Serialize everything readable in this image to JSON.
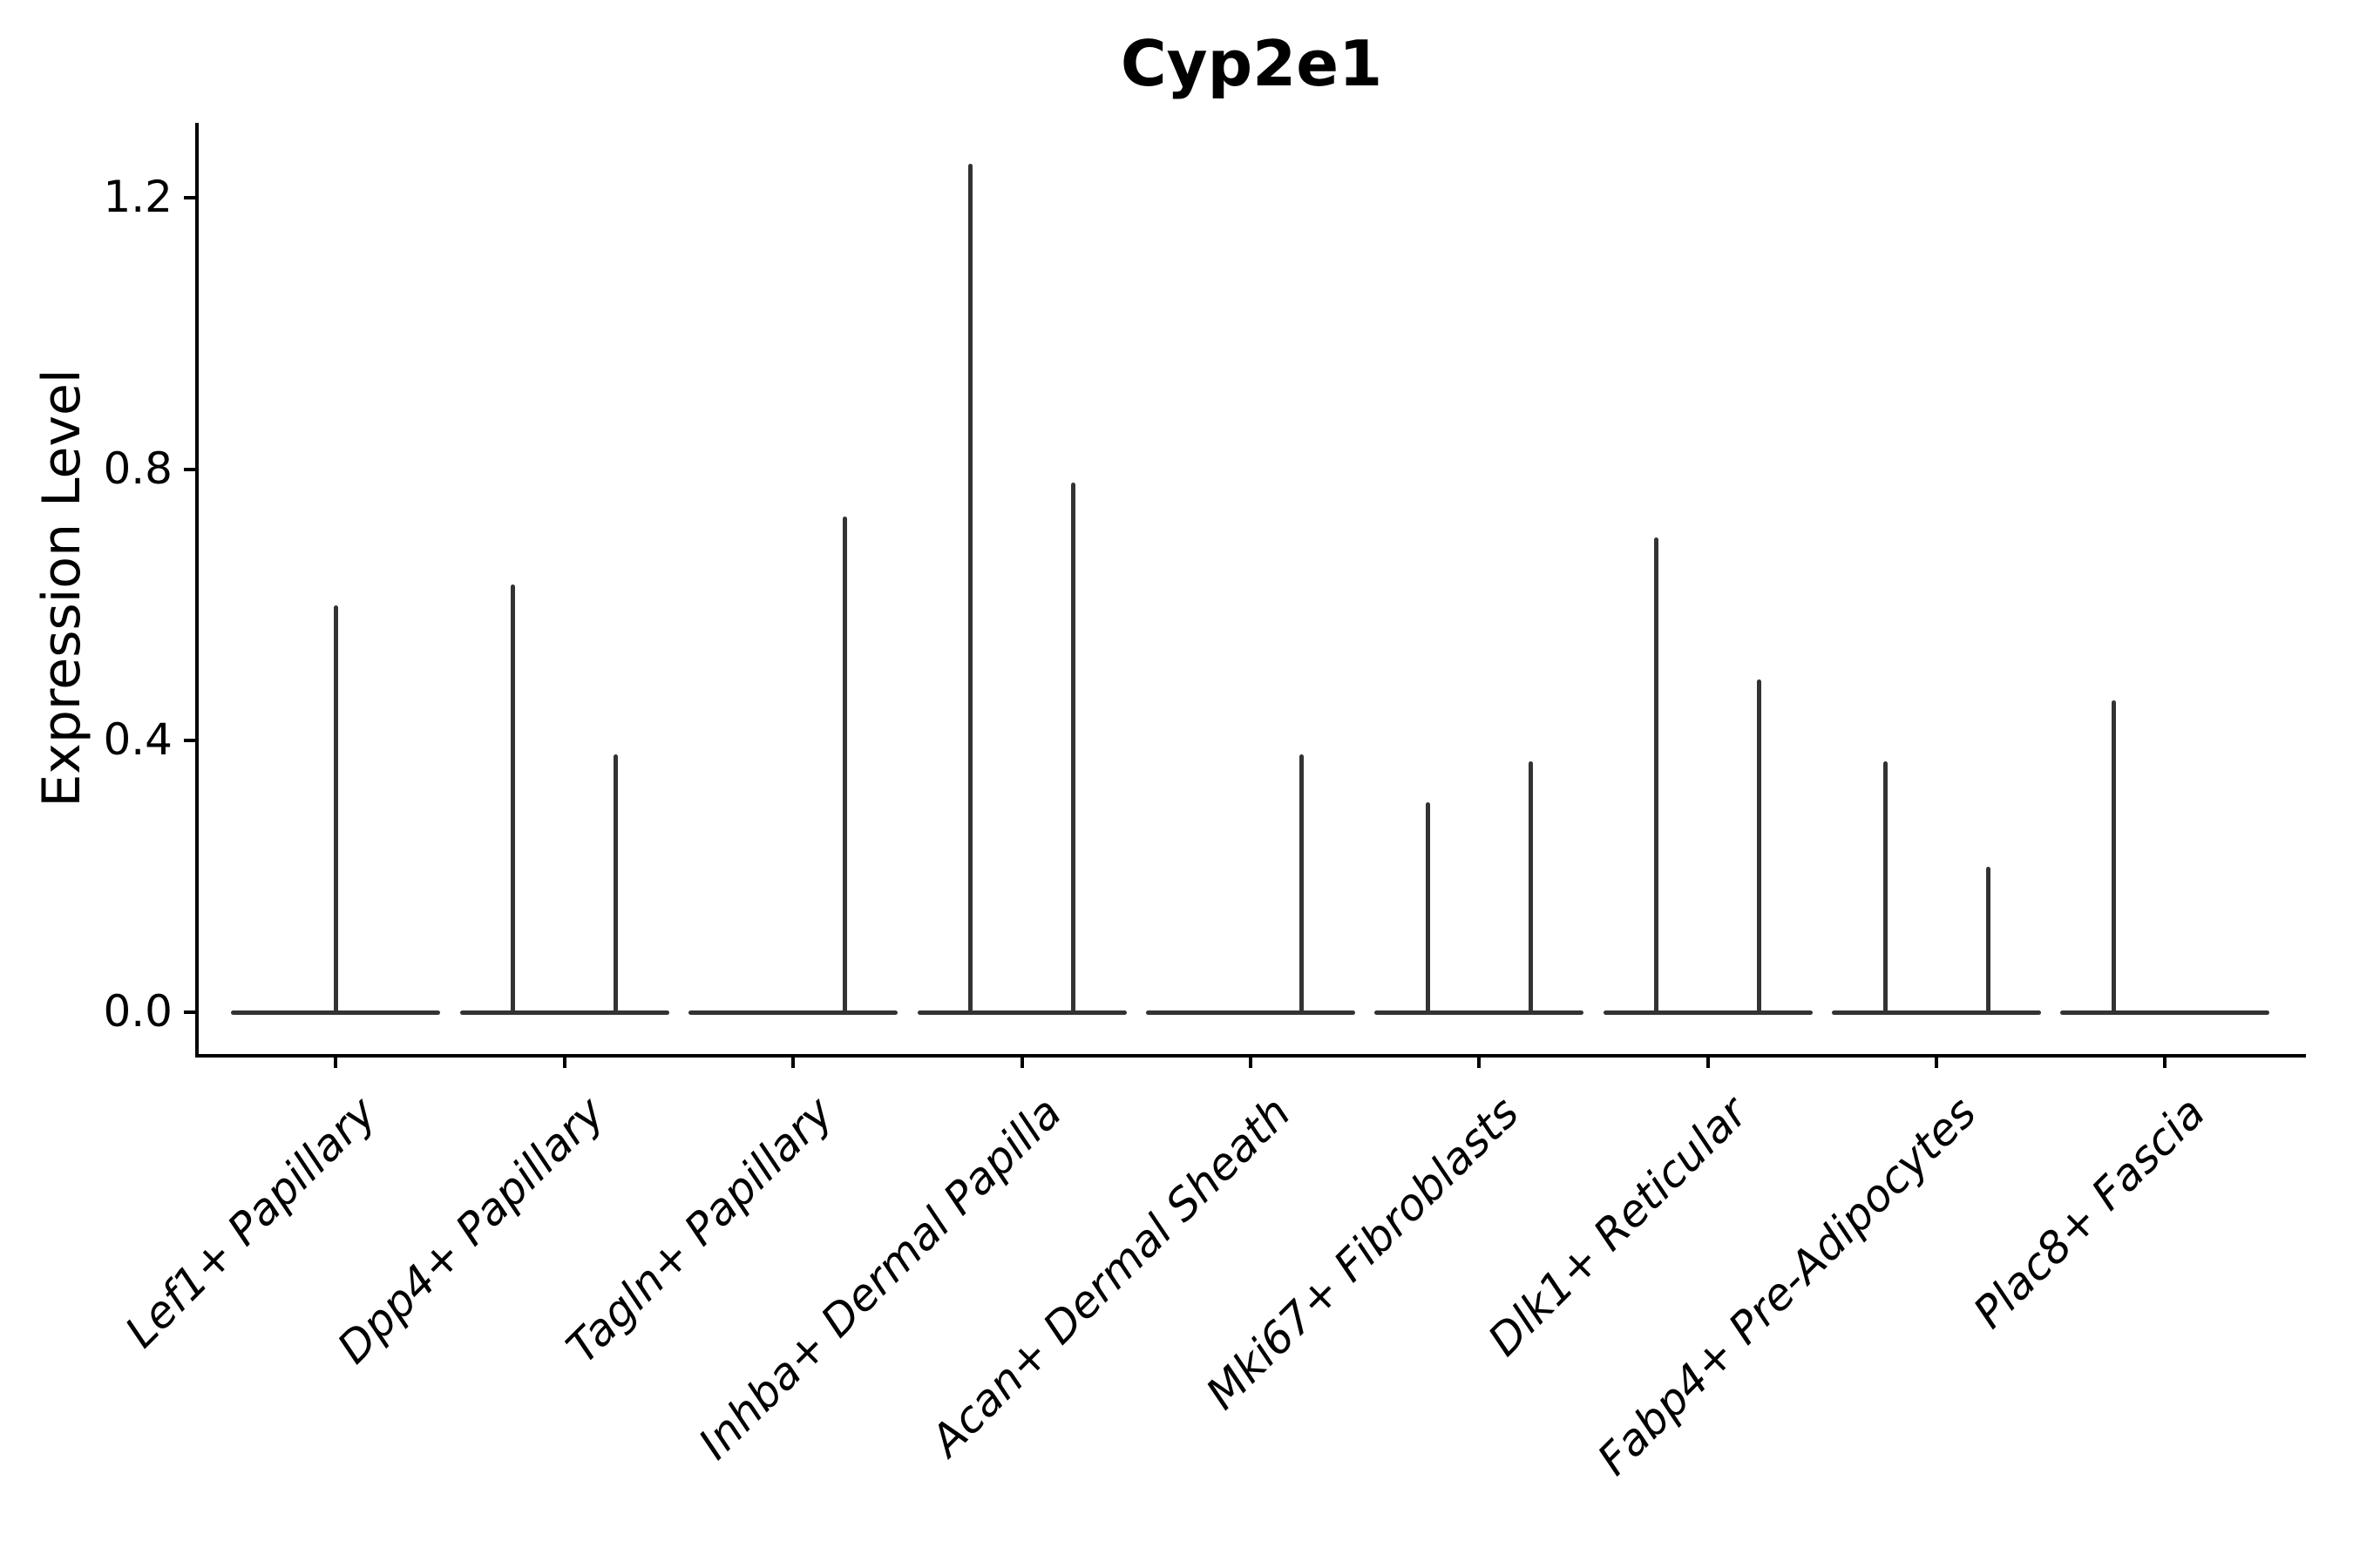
{
  "title": "Cyp2e1",
  "y_axis": {
    "label": "Expression Level",
    "tick_labels": [
      "0.0",
      "0.4",
      "0.8",
      "1.2"
    ]
  },
  "colors": {
    "violin_stroke": "#333333",
    "axis": "#000000",
    "text": "#000000",
    "background": "#ffffff"
  },
  "chart_data": {
    "type": "violin",
    "title": "Cyp2e1",
    "xlabel": "",
    "ylabel": "Expression Level",
    "ylim": [
      0,
      1.31
    ],
    "yticks": [
      0.0,
      0.4,
      0.8,
      1.2
    ],
    "grid": false,
    "legend": false,
    "x_tick_rotation": 45,
    "categories": [
      "Lef1+ Papillary",
      "Dpp4+ Papillary",
      "Tagln+ Papillary",
      "Inhba+ Dermal Papilla",
      "Acan+ Dermal Sheath",
      "Mki67+ Fibroblasts",
      "Dlk1+ Reticular",
      "Fabp4+ Pre-Adipocytes",
      "Plac8+ Fascia"
    ],
    "series": [
      {
        "category": "Lef1+ Papillary",
        "violins": [
          {
            "position": "center",
            "max_expression": 0.6
          }
        ]
      },
      {
        "category": "Dpp4+ Papillary",
        "violins": [
          {
            "position": "left",
            "max_expression": 0.63
          },
          {
            "position": "right",
            "max_expression": 0.38
          }
        ]
      },
      {
        "category": "Tagln+ Papillary",
        "violins": [
          {
            "position": "right",
            "max_expression": 0.73
          }
        ]
      },
      {
        "category": "Inhba+ Dermal Papilla",
        "violins": [
          {
            "position": "left",
            "max_expression": 1.25
          },
          {
            "position": "right",
            "max_expression": 0.78
          }
        ]
      },
      {
        "category": "Acan+ Dermal Sheath",
        "violins": [
          {
            "position": "right",
            "max_expression": 0.38
          }
        ]
      },
      {
        "category": "Mki67+ Fibroblasts",
        "violins": [
          {
            "position": "left",
            "max_expression": 0.31
          },
          {
            "position": "right",
            "max_expression": 0.37
          }
        ]
      },
      {
        "category": "Dlk1+ Reticular",
        "violins": [
          {
            "position": "left",
            "max_expression": 0.7
          },
          {
            "position": "right",
            "max_expression": 0.49
          }
        ]
      },
      {
        "category": "Fabp4+ Pre-Adipocytes",
        "violins": [
          {
            "position": "left",
            "max_expression": 0.37
          },
          {
            "position": "right",
            "max_expression": 0.215
          }
        ]
      },
      {
        "category": "Plac8+ Fascia",
        "violins": [
          {
            "position": "left",
            "max_expression": 0.46
          }
        ]
      }
    ]
  }
}
